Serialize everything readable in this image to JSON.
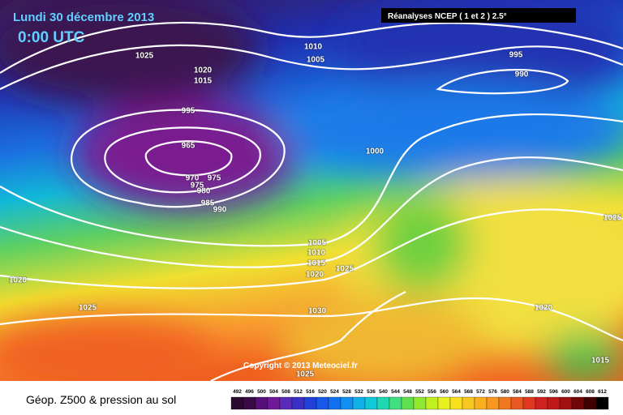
{
  "header": {
    "date": "Lundi 30 décembre 2013",
    "time": "0:00 UTC",
    "source": "Réanalyses NCEP ( 1 et 2 ) 2.5°"
  },
  "copyright": "Copyright © 2013 Meteociel.fr",
  "isobar_labels": [
    1025,
    1020,
    1015,
    1010,
    1005,
    995,
    990,
    995,
    1000,
    965,
    970,
    975,
    975,
    980,
    985,
    990,
    1005,
    1010,
    1015,
    1020,
    1025,
    1020,
    1025,
    1030,
    1020,
    1025,
    1015,
    1025
  ],
  "legend": {
    "title": "Géop. Z500 & pression au sol",
    "scale": [
      492,
      496,
      500,
      504,
      508,
      512,
      516,
      520,
      524,
      528,
      532,
      536,
      540,
      544,
      548,
      552,
      556,
      560,
      564,
      568,
      572,
      576,
      580,
      584,
      588,
      592,
      596,
      600,
      604,
      608,
      612
    ]
  }
}
